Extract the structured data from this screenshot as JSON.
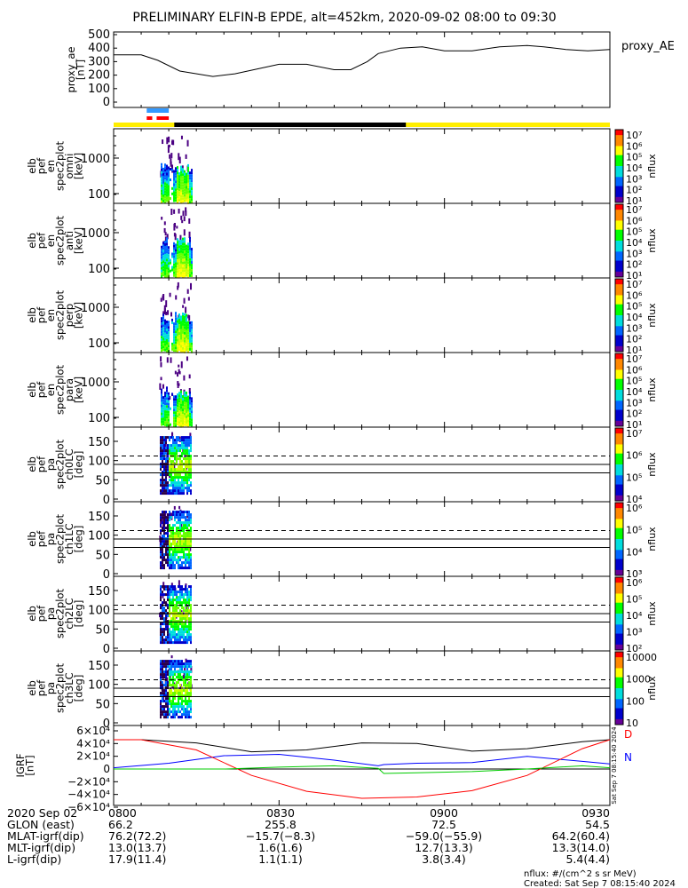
{
  "title": "PRELIMINARY ELFIN-B EPDE, alt=452km, 2020-09-02 08:00 to 09:30",
  "colors": {
    "ae_line": "#000000",
    "blue_bar": "#3399ff",
    "red_bar": "#ff0000",
    "sun_yellow": "#ffee00",
    "night_black": "#000000",
    "grf_black": "#000000",
    "grf_blue": "#0000ff",
    "grf_red": "#ff0000",
    "grf_green": "#00cc00",
    "dashed": "#000000"
  },
  "ae_panel": {
    "ylabel": "proxy_ae\n[nT]",
    "right_label": "proxy_AE",
    "ticks": [
      "500",
      "400",
      "300",
      "200",
      "100",
      "0"
    ]
  },
  "spec_panels": [
    {
      "ylabel": "elb\npef\nen\nspec2plot\nomni\n[keV]",
      "ticks": [
        "1000",
        "100"
      ],
      "cbar_ticks": [
        "10⁷",
        "10⁶",
        "10⁵",
        "10⁴",
        "10³",
        "10²",
        "10¹"
      ],
      "cbar_label": "nflux"
    },
    {
      "ylabel": "elb\npef\nen\nspec2plot\nanti\n[keV]",
      "ticks": [
        "1000",
        "100"
      ],
      "cbar_ticks": [
        "10⁷",
        "10⁶",
        "10⁵",
        "10⁴",
        "10³",
        "10²",
        "10¹"
      ],
      "cbar_label": "nflux"
    },
    {
      "ylabel": "elb\npef\nen\nspec2plot\nperp\n[keV]",
      "ticks": [
        "1000",
        "100"
      ],
      "cbar_ticks": [
        "10⁷",
        "10⁶",
        "10⁵",
        "10⁴",
        "10³",
        "10²",
        "10¹"
      ],
      "cbar_label": "nflux"
    },
    {
      "ylabel": "elb\npef\nen\nspec2plot\npara\n[keV]",
      "ticks": [
        "1000",
        "100"
      ],
      "cbar_ticks": [
        "10⁷",
        "10⁶",
        "10⁵",
        "10⁴",
        "10³",
        "10²",
        "10¹"
      ],
      "cbar_label": "nflux"
    }
  ],
  "pa_panels": [
    {
      "ylabel": "elb\npef\npa\nspec2plot\nch0LC\n[deg]",
      "ticks": [
        "150",
        "100",
        "50",
        "0"
      ],
      "cbar_ticks": [
        "10⁷",
        "10⁶",
        "10⁵",
        "10⁴"
      ],
      "cbar_label": "nflux"
    },
    {
      "ylabel": "elb\npef\npa\nspec2plot\nch1LC\n[deg]",
      "ticks": [
        "150",
        "100",
        "50",
        "0"
      ],
      "cbar_ticks": [
        "10⁶",
        "10⁵",
        "10⁴",
        "10³"
      ],
      "cbar_label": "nflux"
    },
    {
      "ylabel": "elb\npef\npa\nspec2plot\nch2LC\n[deg]",
      "ticks": [
        "150",
        "100",
        "50",
        "0"
      ],
      "cbar_ticks": [
        "10⁶",
        "10⁵",
        "10⁴",
        "10³",
        "10²"
      ],
      "cbar_label": "nflux"
    },
    {
      "ylabel": "elb\npef\npa\nspec2plot\nch3LC\n[deg]",
      "ticks": [
        "150",
        "100",
        "50",
        "0"
      ],
      "cbar_ticks": [
        "10000",
        "1000",
        "100",
        "10"
      ],
      "cbar_label": "nflux"
    }
  ],
  "grf_panel": {
    "ylabel": "IGRF\n[nT]",
    "ticks": [
      "6×10⁴",
      "4×10⁴",
      "2×10⁴",
      "0",
      "−2×10⁴",
      "−4×10⁴",
      "−6×10⁴"
    ],
    "side_letters": [
      "D",
      "N"
    ],
    "side_text": "Sat Sep  7 08:15:40 2024"
  },
  "footer": {
    "rows": [
      {
        "label": "2020 Sep 02",
        "values": [
          "0800",
          "0830",
          "0900",
          "0930"
        ]
      },
      {
        "label": "GLON (east)",
        "values": [
          "66.2",
          "255.8",
          "72.5",
          "54.5"
        ]
      },
      {
        "label": "MLAT-igrf(dip)",
        "values": [
          "76.2(72.2)",
          "−15.7(−8.3)",
          "−59.0(−55.9)",
          "64.2(60.4)"
        ]
      },
      {
        "label": "MLT-igrf(dip)",
        "values": [
          "13.0(13.7)",
          "1.6(1.6)",
          "12.7(13.3)",
          "13.3(14.0)"
        ]
      },
      {
        "label": "L-igrf(dip)",
        "values": [
          "17.9(11.4)",
          "1.1(1.1)",
          "3.8(3.4)",
          "5.4(4.4)"
        ]
      }
    ],
    "units_note": "nflux: #/(cm^2 s sr MeV)",
    "created": "Created: Sat Sep  7 08:15:40 2024"
  },
  "chart_data": {
    "type": "line",
    "title": "PRELIMINARY ELFIN-B EPDE, alt=452km, 2020-09-02 08:00 to 09:30",
    "x_range": [
      "08:00",
      "09:30"
    ],
    "proxy_ae": {
      "ylim": [
        0,
        500
      ],
      "x_min": [
        0,
        5,
        8,
        12,
        18,
        22,
        30,
        35,
        40,
        43,
        46,
        48,
        52,
        56,
        60,
        65,
        70,
        75,
        78,
        82,
        86,
        90
      ],
      "values": [
        350,
        350,
        310,
        230,
        190,
        210,
        280,
        280,
        240,
        240,
        300,
        360,
        400,
        410,
        380,
        380,
        410,
        420,
        410,
        390,
        380,
        390
      ]
    },
    "science_zones": {
      "blue": [
        6.0,
        10.0
      ],
      "red": [
        6.0,
        7.0,
        7.8,
        10.0
      ]
    },
    "sunlight": {
      "black_minutes": [
        11,
        53
      ]
    },
    "igrf": {
      "ylim": [
        -60000,
        60000
      ],
      "series": [
        {
          "color": "black",
          "x_min": [
            0,
            5,
            15,
            25,
            35,
            45,
            55,
            65,
            75,
            85,
            90
          ],
          "values": [
            46000,
            46000,
            41000,
            27000,
            30000,
            41000,
            40000,
            28000,
            32000,
            43000,
            46000
          ]
        },
        {
          "color": "blue",
          "x_min": [
            0,
            10,
            20,
            30,
            40,
            48,
            49,
            55,
            65,
            75,
            85,
            90
          ],
          "values": [
            2000,
            9000,
            21000,
            23000,
            14000,
            5000,
            7000,
            9000,
            10000,
            20000,
            12000,
            8000
          ]
        },
        {
          "color": "red",
          "x_min": [
            0,
            5,
            15,
            25,
            35,
            45,
            55,
            65,
            75,
            85,
            90
          ],
          "values": [
            46000,
            46000,
            30000,
            -10000,
            -35000,
            -46000,
            -44000,
            -34000,
            -10000,
            32000,
            46000
          ]
        },
        {
          "color": "green",
          "x_min": [
            0,
            10,
            20,
            30,
            40,
            48,
            49,
            55,
            65,
            75,
            85,
            90
          ],
          "values": [
            0,
            0,
            0,
            3000,
            5000,
            1000,
            -7000,
            -6000,
            -4000,
            0,
            5000,
            2000
          ]
        }
      ]
    }
  }
}
